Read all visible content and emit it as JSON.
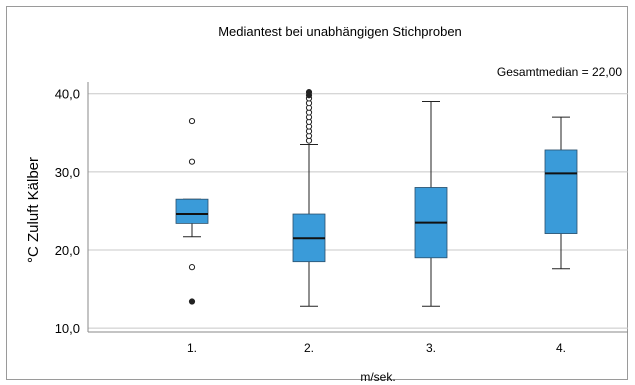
{
  "chart_data": {
    "type": "boxplot",
    "title": "Mediantest bei unabhängigen Stichproben",
    "annotation": "Gesamtmedian = 22,00",
    "xlabel": "m/sek.",
    "ylabel": "°C Zuluft Kälber",
    "ylim": [
      9.5,
      41.5
    ],
    "yticks": [
      10,
      20,
      30,
      40
    ],
    "ytick_labels": [
      "10,0",
      "20,0",
      "30,0",
      "40,0"
    ],
    "categories": [
      "1.",
      "2.",
      "3.",
      "4."
    ],
    "grid": true,
    "box_color": "#3a9bd9",
    "boxes": [
      {
        "category": "1.",
        "whisker_low": 21.7,
        "q1": 23.4,
        "median": 24.6,
        "q3": 26.5,
        "whisker_high": 26.5,
        "outliers": [
          36.5,
          31.3,
          17.8
        ],
        "extremes": [
          13.4
        ]
      },
      {
        "category": "2.",
        "whisker_low": 12.8,
        "q1": 18.5,
        "median": 21.5,
        "q3": 24.6,
        "whisker_high": 33.5,
        "outliers": [
          34.0,
          34.6,
          35.2,
          35.8,
          36.4,
          37.0,
          37.6,
          38.2,
          38.8,
          39.4
        ],
        "extremes": [
          39.8,
          40.2
        ]
      },
      {
        "category": "3.",
        "whisker_low": 12.8,
        "q1": 19.0,
        "median": 23.5,
        "q3": 28.0,
        "whisker_high": 39.0,
        "outliers": [],
        "extremes": []
      },
      {
        "category": "4.",
        "whisker_low": 17.6,
        "q1": 22.1,
        "median": 29.8,
        "q3": 32.8,
        "whisker_high": 37.0,
        "outliers": [],
        "extremes": []
      }
    ]
  }
}
